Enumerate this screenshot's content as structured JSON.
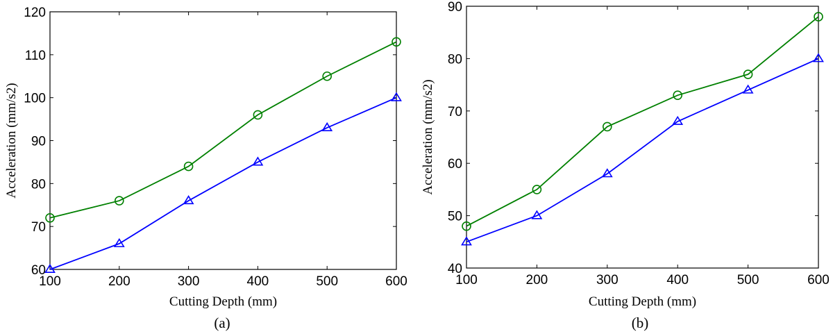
{
  "chart_data": [
    {
      "type": "line",
      "caption": "(a)",
      "xlabel": "Cutting Depth (mm)",
      "ylabel": "Acceleration (mm/s2)",
      "x": [
        100,
        200,
        300,
        400,
        500,
        600
      ],
      "xlim": [
        100,
        600
      ],
      "ylim": [
        60,
        120
      ],
      "xticks": [
        100,
        200,
        300,
        400,
        500,
        600
      ],
      "yticks": [
        60,
        70,
        80,
        90,
        100,
        110,
        120
      ],
      "grid": false,
      "series": [
        {
          "values": [
            72,
            76,
            84,
            96,
            105,
            113
          ],
          "color": "#008000",
          "marker": "circle"
        },
        {
          "values": [
            60,
            66,
            76,
            85,
            93,
            100
          ],
          "color": "#0000ff",
          "marker": "triangle"
        }
      ]
    },
    {
      "type": "line",
      "caption": "(b)",
      "xlabel": "Cutting Depth (mm)",
      "ylabel": "Acceleration (mm/s2)",
      "x": [
        100,
        200,
        300,
        400,
        500,
        600
      ],
      "xlim": [
        100,
        600
      ],
      "ylim": [
        40,
        90
      ],
      "xticks": [
        100,
        200,
        300,
        400,
        500,
        600
      ],
      "yticks": [
        40,
        50,
        60,
        70,
        80,
        90
      ],
      "grid": false,
      "series": [
        {
          "values": [
            48,
            55,
            67,
            73,
            77,
            88
          ],
          "color": "#008000",
          "marker": "circle"
        },
        {
          "values": [
            45,
            50,
            58,
            68,
            74,
            80
          ],
          "color": "#0000ff",
          "marker": "triangle"
        }
      ]
    }
  ]
}
